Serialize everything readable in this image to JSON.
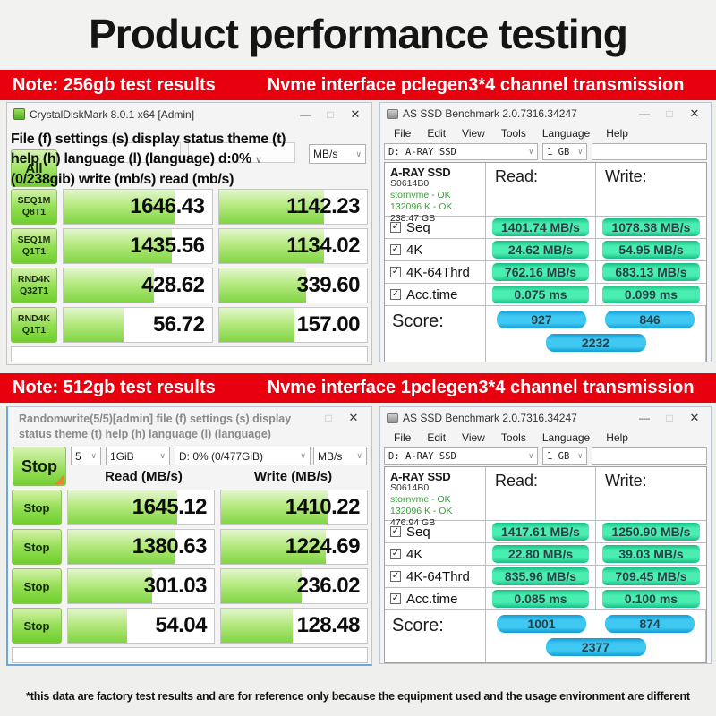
{
  "page": {
    "title": "Product performance testing",
    "disclaimer": "*this data are factory test results and are for reference only because the equipment used and the usage environment are different"
  },
  "icons": {
    "minimize": "—",
    "maximize": "□",
    "close": "✕",
    "chevron_down": "∨",
    "check": "✓"
  },
  "banner1": {
    "note": "Note: 256gb test results",
    "info": "Nvme interface pclegen3*4 channel transmission"
  },
  "banner2": {
    "note": "Note: 512gb test results",
    "info": "Nvme interface 1pclegen3*4 channel transmission"
  },
  "cdm1": {
    "window_title": "CrystalDiskMark 8.0.1 x64 [Admin]",
    "overlay1": "File (f) settings (s) display status theme (t)",
    "overlay2": "help (h) language (l) (language) d:0%",
    "overlay3": "(0/238gib) write (mb/s) read (mb/s)",
    "unit": "MB/s",
    "all_label": "All",
    "rows": [
      {
        "l1": "SEQ1M",
        "l2": "Q8T1",
        "read": "1646.43",
        "write": "1142.23"
      },
      {
        "l1": "SEQ1M",
        "l2": "Q1T1",
        "read": "1435.56",
        "write": "1134.02"
      },
      {
        "l1": "RND4K",
        "l2": "Q32T1",
        "read": "428.62",
        "write": "339.60"
      },
      {
        "l1": "RND4K",
        "l2": "Q1T1",
        "read": "56.72",
        "write": "157.00"
      }
    ]
  },
  "cdm2": {
    "title_line1": "Randomwrite(5/5)[admin] file (f) settings (s) display",
    "title_line2": "status theme (t) help (h) language (l) (language)",
    "stop_label": "Stop",
    "dd_count": "5",
    "dd_size": "1GiB",
    "dd_drive": "D: 0% (0/477GiB)",
    "dd_unit": "MB/s",
    "col_read": "Read (MB/s)",
    "col_write": "Write (MB/s)",
    "rows": [
      {
        "label": "Stop",
        "read": "1645.12",
        "write": "1410.22"
      },
      {
        "label": "Stop",
        "read": "1380.63",
        "write": "1224.69"
      },
      {
        "label": "Stop",
        "read": "301.03",
        "write": "236.02"
      },
      {
        "label": "Stop",
        "read": "54.04",
        "write": "128.48"
      }
    ]
  },
  "assd1": {
    "window_title": "AS SSD Benchmark 2.0.7316.34247",
    "menu": [
      "File",
      "Edit",
      "View",
      "Tools",
      "Language",
      "Help"
    ],
    "dd_drive": "D: A-RAY SSD",
    "dd_size": "1 GB",
    "drive_name": "A-RAY SSD",
    "drive_serial": "S0614B0",
    "drive_status1": "stornvme - OK",
    "drive_status2": "132096 K - OK",
    "drive_capacity": "238.47 GB",
    "col_read": "Read:",
    "col_write": "Write:",
    "rows": [
      {
        "label": "Seq",
        "read": "1401.74 MB/s",
        "write": "1078.38 MB/s"
      },
      {
        "label": "4K",
        "read": "24.62 MB/s",
        "write": "54.95 MB/s"
      },
      {
        "label": "4K-64Thrd",
        "read": "762.16 MB/s",
        "write": "683.13 MB/s"
      },
      {
        "label": "Acc.time",
        "read": "0.075 ms",
        "write": "0.099 ms"
      }
    ],
    "score_label": "Score:",
    "score_read": "927",
    "score_write": "846",
    "score_total": "2232"
  },
  "assd2": {
    "window_title": "AS SSD Benchmark 2.0.7316.34247",
    "menu": [
      "File",
      "Edit",
      "View",
      "Tools",
      "Language",
      "Help"
    ],
    "dd_drive": "D: A-RAY SSD",
    "dd_size": "1 GB",
    "drive_name": "A-RAY SSD",
    "drive_serial": "S0614B0",
    "drive_status1": "stornvme - OK",
    "drive_status2": "132096 K - OK",
    "drive_capacity": "476.94 GB",
    "col_read": "Read:",
    "col_write": "Write:",
    "rows": [
      {
        "label": "Seq",
        "read": "1417.61 MB/s",
        "write": "1250.90 MB/s"
      },
      {
        "label": "4K",
        "read": "22.80 MB/s",
        "write": "39.03 MB/s"
      },
      {
        "label": "4K-64Thrd",
        "read": "835.96 MB/s",
        "write": "709.45 MB/s"
      },
      {
        "label": "Acc.time",
        "read": "0.085 ms",
        "write": "0.100 ms"
      }
    ],
    "score_label": "Score:",
    "score_read": "1001",
    "score_write": "874",
    "score_total": "2377"
  }
}
